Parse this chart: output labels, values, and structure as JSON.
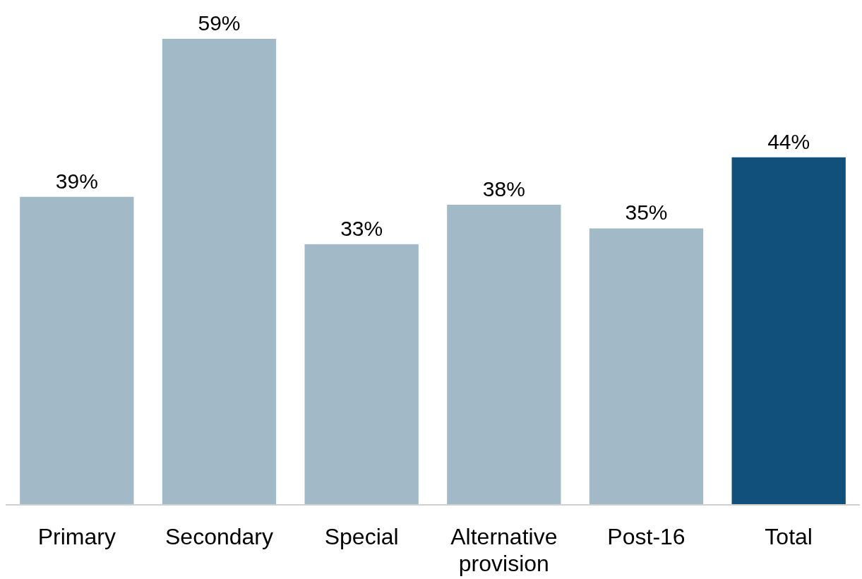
{
  "chart_data": {
    "type": "bar",
    "categories": [
      "Primary",
      "Secondary",
      "Special",
      "Alternative provision",
      "Post-16",
      "Total"
    ],
    "values": [
      39,
      59,
      33,
      38,
      35,
      44
    ],
    "colors": [
      "#a2b9c8",
      "#a2b9c8",
      "#a2b9c8",
      "#a2b9c8",
      "#a2b9c8",
      "#10507a"
    ],
    "value_labels": [
      "39%",
      "59%",
      "33%",
      "38%",
      "35%",
      "44%"
    ]
  }
}
